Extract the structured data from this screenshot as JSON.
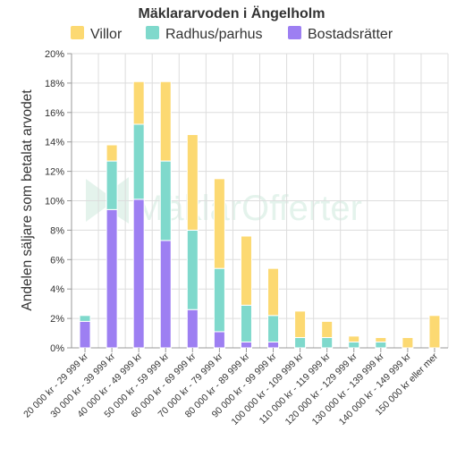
{
  "chart_data": {
    "type": "bar",
    "stacked": true,
    "title": "Mäklararvoden i Ängelholm",
    "ylabel": "Andelen säljare som betalat arvodet",
    "xlabel": "",
    "ylim": [
      0,
      20
    ],
    "yticks": [
      "0%",
      "2%",
      "4%",
      "6%",
      "8%",
      "10%",
      "12%",
      "14%",
      "16%",
      "18%",
      "20%"
    ],
    "grid": true,
    "legend_position": "top",
    "watermark": "MäklarOfferter",
    "categories": [
      "20 000 kr - 29 999 kr",
      "30 000 kr - 39 999 kr",
      "40 000 kr - 49 999 kr",
      "50 000 kr - 59 999 kr",
      "60 000 kr - 69 999 kr",
      "70 000 kr - 79 999 kr",
      "80 000 kr - 89 999 kr",
      "90 000 kr - 99 999 kr",
      "100 000 kr - 109 999 kr",
      "110 000 kr - 119 999 kr",
      "120 000 kr - 129 999 kr",
      "130 000 kr - 139 999 kr",
      "140 000 kr - 149 999 kr",
      "150 000 kr eller mer"
    ],
    "series": [
      {
        "name": "Bostadsrätter",
        "color": "#9d7ff2",
        "values": [
          1.8,
          9.4,
          10.1,
          7.3,
          2.6,
          1.1,
          0.4,
          0.4,
          0,
          0,
          0,
          0,
          0,
          0
        ]
      },
      {
        "name": "Radhus/parhus",
        "color": "#7fd9cc",
        "values": [
          0.4,
          3.3,
          5.1,
          5.4,
          5.4,
          4.3,
          2.5,
          1.8,
          0.7,
          0.7,
          0.4,
          0.4,
          0,
          0
        ]
      },
      {
        "name": "Villor",
        "color": "#fcd972",
        "values": [
          0,
          1.1,
          2.9,
          5.4,
          6.5,
          6.1,
          4.7,
          3.2,
          1.8,
          1.1,
          0.4,
          0.3,
          0.7,
          2.2
        ]
      }
    ],
    "legend_order": [
      "Villor",
      "Radhus/parhus",
      "Bostadsrätter"
    ]
  }
}
